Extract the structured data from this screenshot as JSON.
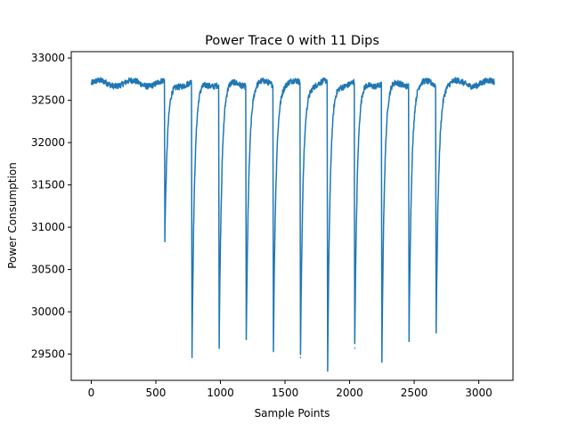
{
  "chart_data": {
    "type": "line",
    "title": "Power Trace 0 with 11 Dips",
    "xlabel": "Sample Points",
    "ylabel": "Power Consumption",
    "xlim": [
      -155,
      3265
    ],
    "ylim": [
      29190,
      33075
    ],
    "xticks": [
      0,
      500,
      1000,
      1500,
      2000,
      2500,
      3000
    ],
    "yticks": [
      29500,
      30000,
      30500,
      31000,
      31500,
      32000,
      32500,
      33000
    ],
    "grid": false,
    "legend": "none",
    "series_color": "#1f77b4",
    "series": [
      {
        "baseline": 32700,
        "x_range": [
          0,
          3120
        ],
        "dips": [
          {
            "x": 570,
            "min": 30830
          },
          {
            "x": 780,
            "min": 29460
          },
          {
            "x": 990,
            "min": 29570
          },
          {
            "x": 1200,
            "min": 29680
          },
          {
            "x": 1410,
            "min": 29570
          },
          {
            "x": 1620,
            "min": 29460
          },
          {
            "x": 1830,
            "min": 29300
          },
          {
            "x": 2040,
            "min": 29570
          },
          {
            "x": 2250,
            "min": 29430
          },
          {
            "x": 2460,
            "min": 29660
          },
          {
            "x": 2670,
            "min": 29790
          }
        ]
      }
    ]
  }
}
